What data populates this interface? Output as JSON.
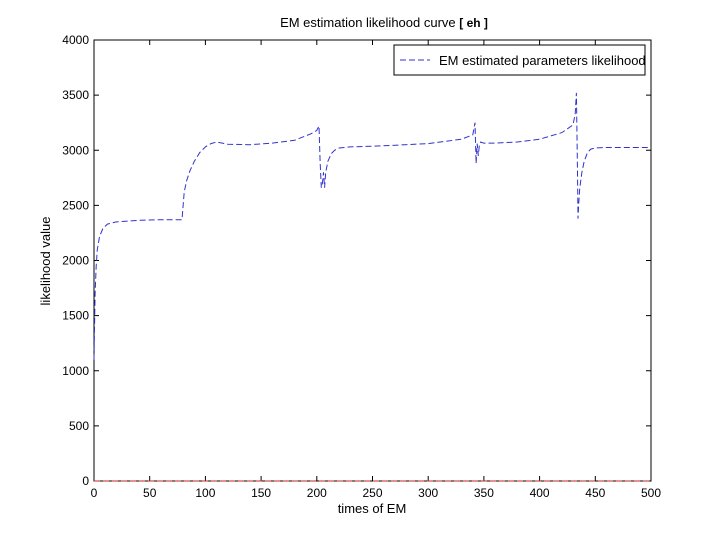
{
  "chart_data": {
    "type": "line",
    "title_main": "EM estimation likelihood curve ",
    "title_bracket": "[ eh ]",
    "xlabel": "times of EM",
    "ylabel": "likelihood value",
    "xlim": [
      0,
      500
    ],
    "ylim": [
      0,
      4000
    ],
    "xticks": [
      0,
      50,
      100,
      150,
      200,
      250,
      300,
      350,
      400,
      450,
      500
    ],
    "yticks": [
      0,
      500,
      1000,
      1500,
      2000,
      2500,
      3000,
      3500,
      4000
    ],
    "grid": false,
    "legend_position": "top-right",
    "series": [
      {
        "name": "EM estimated parameters likelihood",
        "color": "#3333cc",
        "style": "dashed",
        "x": [
          0,
          1,
          2,
          3,
          5,
          8,
          12,
          20,
          40,
          60,
          79,
          81,
          83,
          86,
          90,
          95,
          100,
          105,
          110,
          120,
          140,
          160,
          180,
          195,
          200,
          202,
          203,
          204,
          205,
          206,
          207,
          208,
          210,
          213,
          216,
          220,
          230,
          260,
          300,
          330,
          340,
          342,
          343,
          344,
          345,
          346,
          347,
          348,
          350,
          360,
          380,
          400,
          420,
          430,
          432,
          433,
          434,
          434.5,
          435,
          436,
          438,
          440,
          443,
          446,
          450,
          460,
          480,
          500
        ],
        "y": [
          1100,
          1700,
          1950,
          2100,
          2220,
          2290,
          2330,
          2350,
          2365,
          2370,
          2370,
          2620,
          2720,
          2810,
          2900,
          2980,
          3030,
          3060,
          3075,
          3055,
          3050,
          3065,
          3090,
          3150,
          3180,
          3220,
          2900,
          2660,
          2700,
          2800,
          2660,
          2800,
          2900,
          2970,
          3000,
          3020,
          3030,
          3040,
          3060,
          3100,
          3140,
          3250,
          2880,
          3060,
          2950,
          3050,
          3075,
          3070,
          3065,
          3065,
          3075,
          3100,
          3160,
          3230,
          3330,
          3520,
          2800,
          2380,
          2500,
          2650,
          2800,
          2900,
          2980,
          3010,
          3020,
          3025,
          3025,
          3025
        ]
      },
      {
        "name": "",
        "color": "#cc2222",
        "style": "dashed",
        "x": [
          0,
          500
        ],
        "y": [
          0,
          0
        ]
      }
    ]
  }
}
